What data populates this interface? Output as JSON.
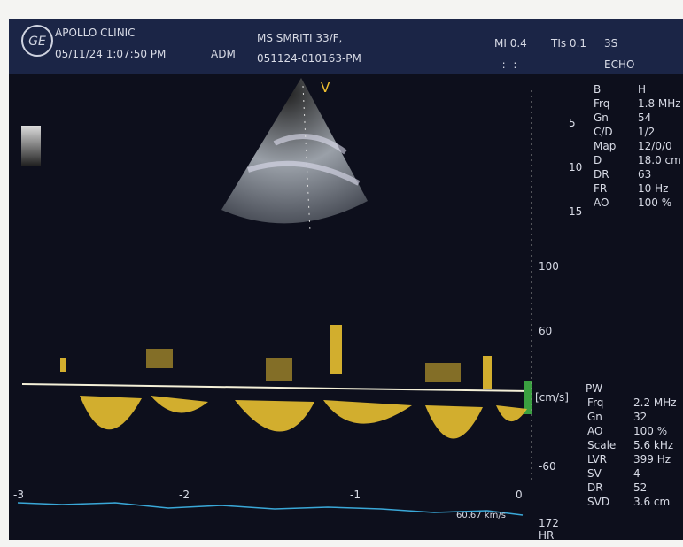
{
  "header": {
    "clinic": "APOLLO CLINIC",
    "datetime": "05/11/24 1:07:50 PM",
    "operator": "ADM",
    "patient": "MS SMRITI 33/F,",
    "patient_id": "051124-010163-PM",
    "mi": "MI 0.4",
    "tis": "TIs 0.1",
    "probe": "3S",
    "time_placeholder": "--:--:--",
    "mode": "ECHO"
  },
  "bmode": {
    "marker": "V",
    "depth_labels": [
      "5",
      "10",
      "15"
    ],
    "params": [
      [
        "B",
        "H"
      ],
      [
        "Frq",
        "1.8 MHz"
      ],
      [
        "Gn",
        "54"
      ],
      [
        "C/D",
        "1/2"
      ],
      [
        "Map",
        "12/0/0"
      ],
      [
        "D",
        "18.0 cm"
      ],
      [
        "DR",
        "63"
      ],
      [
        "FR",
        "10 Hz"
      ],
      [
        "AO",
        "100 %"
      ]
    ]
  },
  "doppler": {
    "scale_labels": [
      "100",
      "60",
      "-60"
    ],
    "unit": "[cm/s]",
    "mode": "PW",
    "params": [
      [
        "Frq",
        "2.2 MHz"
      ],
      [
        "Gn",
        "32"
      ],
      [
        "AO",
        "100 %"
      ],
      [
        "Scale",
        "5.6 kHz"
      ],
      [
        "LVR",
        "399 Hz"
      ],
      [
        "SV",
        "4"
      ],
      [
        "DR",
        "52"
      ],
      [
        "SVD",
        "3.6 cm"
      ]
    ],
    "time_labels": [
      "-3",
      "-2",
      "-1",
      "0"
    ],
    "ecg_speed": "60.67 km/s",
    "heart_rate": "172",
    "heart_rate_unit": "HR"
  }
}
